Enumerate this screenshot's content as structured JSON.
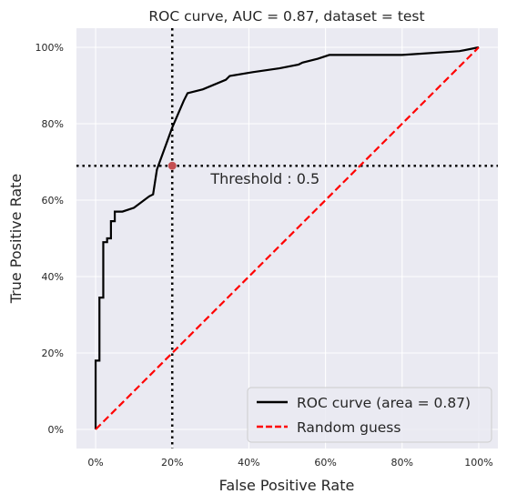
{
  "chart_data": {
    "type": "line",
    "title": "ROC curve, AUC = 0.87, dataset = test",
    "xlabel": "False Positive Rate",
    "ylabel": "True Positive Rate",
    "xlim": [
      -0.05,
      1.05
    ],
    "ylim": [
      -0.05,
      1.05
    ],
    "xticks": [
      {
        "value": 0.0,
        "label": "0%"
      },
      {
        "value": 0.2,
        "label": "20%"
      },
      {
        "value": 0.4,
        "label": "40%"
      },
      {
        "value": 0.6,
        "label": "60%"
      },
      {
        "value": 0.8,
        "label": "80%"
      },
      {
        "value": 1.0,
        "label": "100%"
      }
    ],
    "yticks": [
      {
        "value": 0.0,
        "label": "0%"
      },
      {
        "value": 0.2,
        "label": "20%"
      },
      {
        "value": 0.4,
        "label": "40%"
      },
      {
        "value": 0.6,
        "label": "60%"
      },
      {
        "value": 0.8,
        "label": "80%"
      },
      {
        "value": 1.0,
        "label": "100%"
      }
    ],
    "grid": true,
    "legend_position": "lower-right",
    "series": [
      {
        "name": "ROC curve (area = 0.87)",
        "color": "#000000",
        "style": "solid",
        "x": [
          0.0,
          0.0,
          0.01,
          0.01,
          0.02,
          0.02,
          0.03,
          0.03,
          0.04,
          0.04,
          0.05,
          0.05,
          0.06,
          0.06,
          0.07,
          0.07,
          0.1,
          0.1,
          0.14,
          0.14,
          0.15,
          0.15,
          0.16,
          0.16,
          0.2,
          0.2,
          0.23,
          0.23,
          0.24,
          0.24,
          0.28,
          0.28,
          0.34,
          0.34,
          0.35,
          0.35,
          0.41,
          0.41,
          0.48,
          0.48,
          0.53,
          0.53,
          0.54,
          0.54,
          0.58,
          0.58,
          0.61,
          0.61,
          0.8,
          0.8,
          0.95,
          0.95,
          1.0
        ],
        "y": [
          0.0,
          0.18,
          0.18,
          0.345,
          0.345,
          0.49,
          0.49,
          0.5,
          0.5,
          0.545,
          0.545,
          0.57,
          0.57,
          0.57,
          0.57,
          0.57,
          0.58,
          0.58,
          0.61,
          0.61,
          0.615,
          0.615,
          0.68,
          0.68,
          0.79,
          0.79,
          0.86,
          0.86,
          0.88,
          0.88,
          0.89,
          0.89,
          0.915,
          0.915,
          0.925,
          0.925,
          0.935,
          0.935,
          0.945,
          0.945,
          0.955,
          0.955,
          0.96,
          0.96,
          0.97,
          0.97,
          0.98,
          0.98,
          0.98,
          0.98,
          0.99,
          0.99,
          1.0
        ]
      },
      {
        "name": "Random guess",
        "color": "#ff0000",
        "style": "dashed",
        "x": [
          0.0,
          1.0
        ],
        "y": [
          0.0,
          1.0
        ]
      }
    ],
    "threshold": {
      "x": 0.2,
      "y": 0.69,
      "label": "Threshold : 0.5",
      "marker_color": "#c44e52"
    }
  }
}
